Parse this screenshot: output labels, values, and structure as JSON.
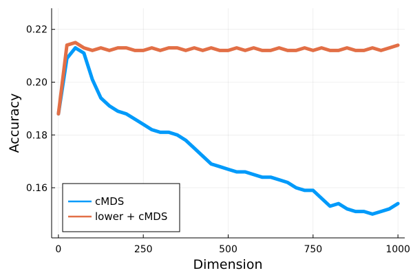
{
  "chart_data": {
    "type": "line",
    "title": "",
    "xlabel": "Dimension",
    "ylabel": "Accuracy",
    "xlim": [
      -20,
      1020
    ],
    "ylim": [
      0.141,
      0.228
    ],
    "xticks": [
      0,
      250,
      500,
      750,
      1000
    ],
    "xtick_labels": [
      "0",
      "250",
      "500",
      "750",
      "1000"
    ],
    "yticks": [
      0.16,
      0.18,
      0.2,
      0.22
    ],
    "ytick_labels": [
      "0.16",
      "0.18",
      "0.20",
      "0.22"
    ],
    "grid": true,
    "legend_position": "bottom-left",
    "series": [
      {
        "name": "cMDS",
        "color": "#009AFA",
        "x": [
          0,
          25,
          50,
          75,
          100,
          125,
          150,
          175,
          200,
          225,
          250,
          275,
          300,
          325,
          350,
          375,
          400,
          425,
          450,
          475,
          500,
          525,
          550,
          575,
          600,
          625,
          650,
          675,
          700,
          725,
          750,
          775,
          800,
          825,
          850,
          875,
          900,
          925,
          950,
          975,
          1000
        ],
        "y": [
          0.188,
          0.209,
          0.213,
          0.211,
          0.201,
          0.194,
          0.191,
          0.189,
          0.188,
          0.186,
          0.184,
          0.182,
          0.181,
          0.181,
          0.18,
          0.178,
          0.175,
          0.172,
          0.169,
          0.168,
          0.167,
          0.166,
          0.166,
          0.165,
          0.164,
          0.164,
          0.163,
          0.162,
          0.16,
          0.159,
          0.159,
          0.156,
          0.153,
          0.154,
          0.152,
          0.151,
          0.151,
          0.15,
          0.151,
          0.152,
          0.154
        ]
      },
      {
        "name": "lower + cMDS",
        "color": "#E26F46",
        "x": [
          0,
          25,
          50,
          75,
          100,
          125,
          150,
          175,
          200,
          225,
          250,
          275,
          300,
          325,
          350,
          375,
          400,
          425,
          450,
          475,
          500,
          525,
          550,
          575,
          600,
          625,
          650,
          675,
          700,
          725,
          750,
          775,
          800,
          825,
          850,
          875,
          900,
          925,
          950,
          975,
          1000
        ],
        "y": [
          0.188,
          0.214,
          0.215,
          0.213,
          0.212,
          0.213,
          0.212,
          0.213,
          0.213,
          0.212,
          0.212,
          0.213,
          0.212,
          0.213,
          0.213,
          0.212,
          0.213,
          0.212,
          0.213,
          0.212,
          0.212,
          0.213,
          0.212,
          0.213,
          0.212,
          0.212,
          0.213,
          0.212,
          0.212,
          0.213,
          0.212,
          0.213,
          0.212,
          0.212,
          0.213,
          0.212,
          0.212,
          0.213,
          0.212,
          0.213,
          0.214
        ]
      }
    ]
  }
}
